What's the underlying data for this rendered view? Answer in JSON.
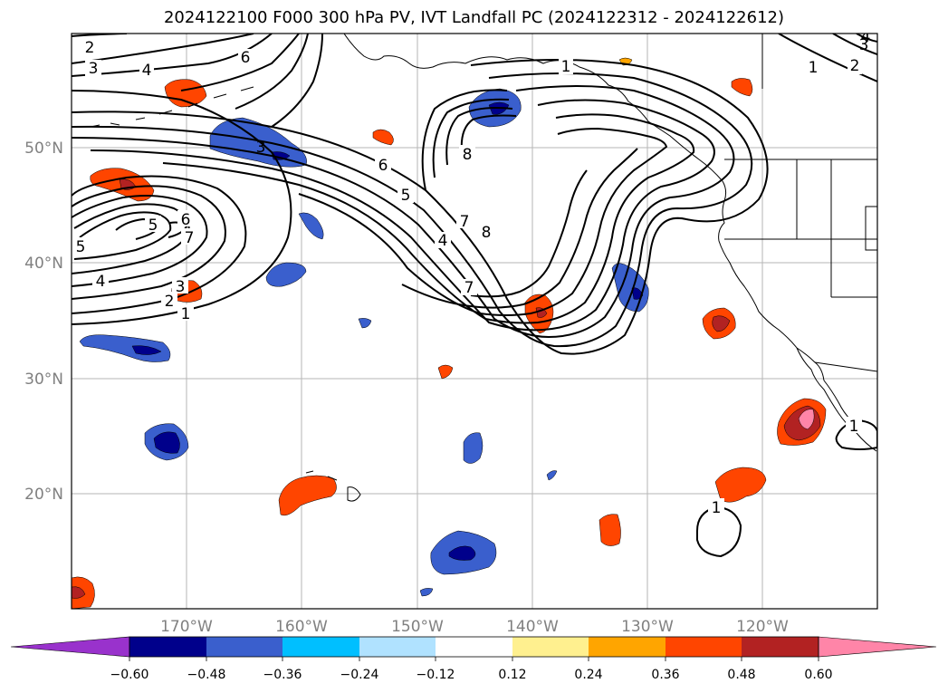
{
  "title": "2024122100 F000 300 hPa PV, IVT Landfall PC (2024122312 - 2024122612)",
  "lat_labels": [
    "50°N",
    "40°N",
    "30°N",
    "20°N"
  ],
  "lon_labels": [
    "170°W",
    "160°W",
    "150°W",
    "140°W",
    "130°W",
    "120°W"
  ],
  "colorbar": {
    "colors": [
      "#9932cc",
      "#00008b",
      "#3a5fcd",
      "#00bfff",
      "#b0e2ff",
      "#ffffff",
      "#fff08f",
      "#ffa500",
      "#ff4500",
      "#b22222",
      "#ff85a8"
    ],
    "tick_labels": [
      "−0.60",
      "−0.48",
      "−0.36",
      "−0.24",
      "−0.12",
      "0.12",
      "0.24",
      "0.36",
      "0.48",
      "0.60"
    ]
  },
  "contour_labels": [
    {
      "id": "c2-nw",
      "text": "2"
    },
    {
      "id": "c3-nw",
      "text": "3"
    },
    {
      "id": "c4-nw",
      "text": "4"
    },
    {
      "id": "c6-top",
      "text": "6"
    },
    {
      "id": "c1-gulf",
      "text": "1"
    },
    {
      "id": "c1-ne",
      "text": "1"
    },
    {
      "id": "c2-ne",
      "text": "2"
    },
    {
      "id": "c3-ne",
      "text": "3"
    },
    {
      "id": "c4-ne",
      "text": "4"
    },
    {
      "id": "c3-blob",
      "text": "3"
    },
    {
      "id": "c6-mid",
      "text": "6"
    },
    {
      "id": "c5-mid",
      "text": "5"
    },
    {
      "id": "c8-up",
      "text": "8"
    },
    {
      "id": "c7-trough",
      "text": "7"
    },
    {
      "id": "c8-trough",
      "text": "8"
    },
    {
      "id": "c4-trough",
      "text": "4"
    },
    {
      "id": "c7-low",
      "text": "7"
    },
    {
      "id": "c5-west",
      "text": "5"
    },
    {
      "id": "c6-west",
      "text": "6"
    },
    {
      "id": "c7-west",
      "text": "7"
    },
    {
      "id": "c5-edge",
      "text": "5"
    },
    {
      "id": "c4-west",
      "text": "4"
    },
    {
      "id": "c3-west",
      "text": "3"
    },
    {
      "id": "c2-west",
      "text": "2"
    },
    {
      "id": "c1-west",
      "text": "1"
    },
    {
      "id": "c1-baja",
      "text": "1"
    },
    {
      "id": "c1-south",
      "text": "1"
    }
  ]
}
